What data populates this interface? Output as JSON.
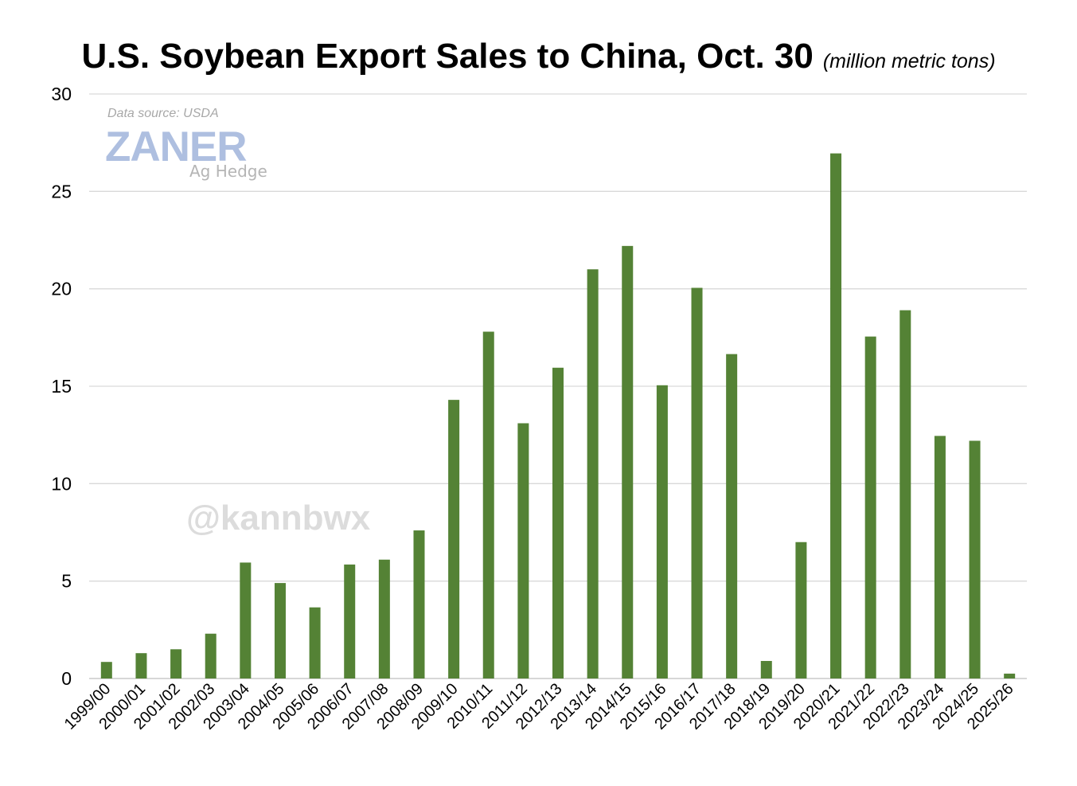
{
  "title": "U.S. Soybean Export Sales to China, Oct. 30",
  "unit": "(million metric tons)",
  "source_note": "Data source: USDA",
  "logo": {
    "main": "ZANER",
    "sub": "Ag Hedge"
  },
  "handle": "@kannbwx",
  "colors": {
    "bar": "#548235",
    "grid": "#d9d9d9",
    "axis": "#bfbfbf"
  },
  "chart_data": {
    "type": "bar",
    "title": "U.S. Soybean Export Sales to China, Oct. 30",
    "ylabel": "(million metric tons)",
    "ylim": [
      0,
      30
    ],
    "yticks": [
      0,
      5,
      10,
      15,
      20,
      25,
      30
    ],
    "grid": true,
    "legend": "none",
    "categories": [
      "1999/00",
      "2000/01",
      "2001/02",
      "2002/03",
      "2003/04",
      "2004/05",
      "2005/06",
      "2006/07",
      "2007/08",
      "2008/09",
      "2009/10",
      "2010/11",
      "2011/12",
      "2012/13",
      "2013/14",
      "2014/15",
      "2015/16",
      "2016/17",
      "2017/18",
      "2018/19",
      "2019/20",
      "2020/21",
      "2021/22",
      "2022/23",
      "2023/24",
      "2024/25",
      "2025/26"
    ],
    "values": [
      0.85,
      1.3,
      1.5,
      2.3,
      5.95,
      4.9,
      3.65,
      5.85,
      6.1,
      7.6,
      14.3,
      17.8,
      13.1,
      15.95,
      21.0,
      22.2,
      15.05,
      20.05,
      16.65,
      0.9,
      7.0,
      26.95,
      17.55,
      18.9,
      12.45,
      12.2,
      0.25
    ]
  }
}
